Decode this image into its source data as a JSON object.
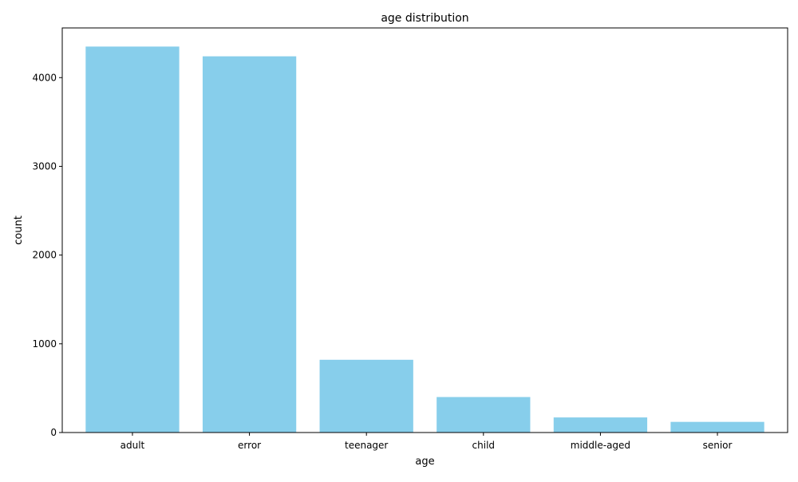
{
  "chart_data": {
    "type": "bar",
    "title": "age distribution",
    "xlabel": "age",
    "ylabel": "count",
    "categories": [
      "adult",
      "error",
      "teenager",
      "child",
      "middle-aged",
      "senior"
    ],
    "values": [
      4350,
      4240,
      820,
      400,
      170,
      120
    ],
    "ylim": [
      0,
      4560
    ],
    "yticks": [
      0,
      1000,
      2000,
      3000,
      4000
    ],
    "ytick_labels": [
      "0",
      "1000",
      "2000",
      "3000",
      "4000"
    ],
    "grid": false,
    "legend": "none",
    "bar_color": "#87ceeb"
  }
}
